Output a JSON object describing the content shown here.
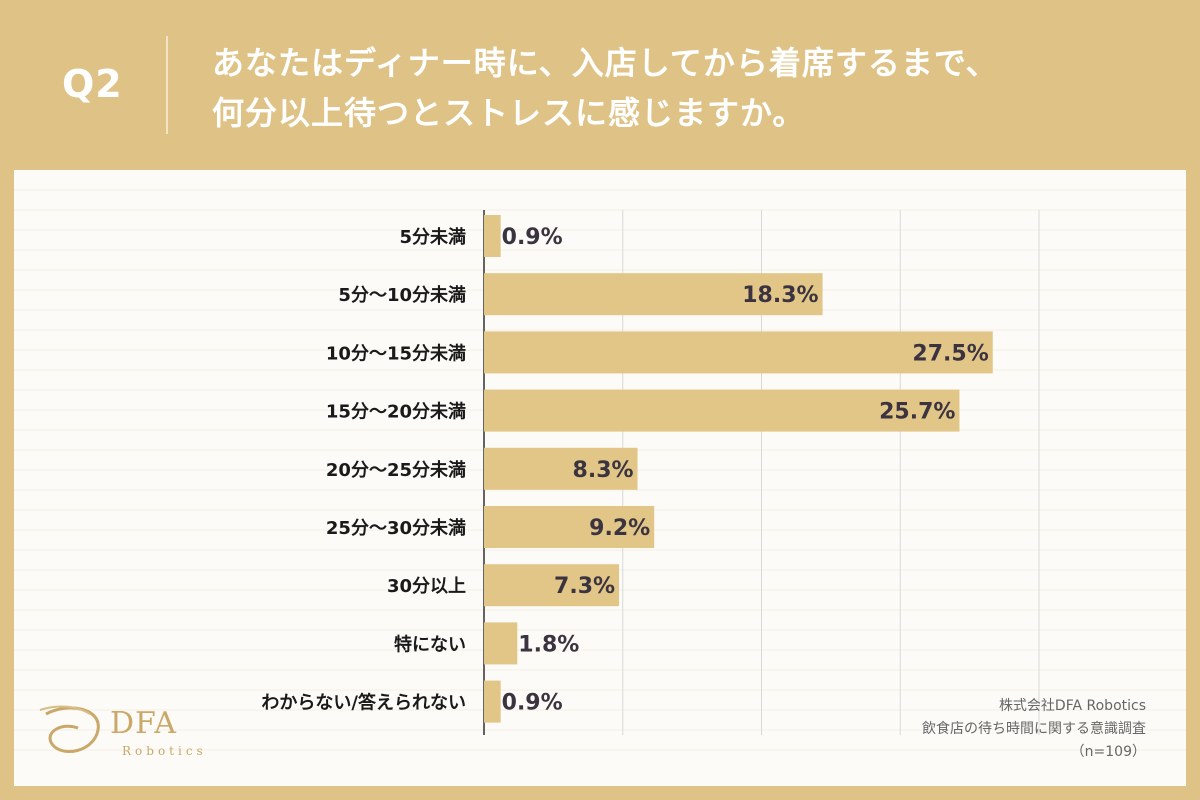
{
  "header": {
    "q_label": "Q2",
    "question_line1": "あなたはディナー時に、入店してから着席するまで、",
    "question_line2": "何分以上待つとストレスに感じますか。"
  },
  "source": {
    "line1": "株式会社DFA Robotics",
    "line2": "飲食店の待ち時間に関する意識調査",
    "line3": "（n=109）"
  },
  "logo": {
    "name": "DFA",
    "sub": "Robotics"
  },
  "colors": {
    "background": "#dfc286",
    "bar": "#e2c687",
    "panel": "#fcfbf7",
    "value_text": "#3b3440"
  },
  "chart_data": {
    "type": "bar",
    "orientation": "horizontal",
    "categories": [
      "5分未満",
      "5分～10分未満",
      "10分～15分未満",
      "15分～20分未満",
      "20分～25分未満",
      "25分～30分未満",
      "30分以上",
      "特にない",
      "わからない/答えられない"
    ],
    "values": [
      0.9,
      18.3,
      27.5,
      25.7,
      8.3,
      9.2,
      7.3,
      1.8,
      0.9
    ],
    "value_labels": [
      "0.9%",
      "18.3%",
      "27.5%",
      "25.7%",
      "8.3%",
      "9.2%",
      "7.3%",
      "1.8%",
      "0.9%"
    ],
    "xlim": [
      0,
      30
    ],
    "grid": true
  }
}
